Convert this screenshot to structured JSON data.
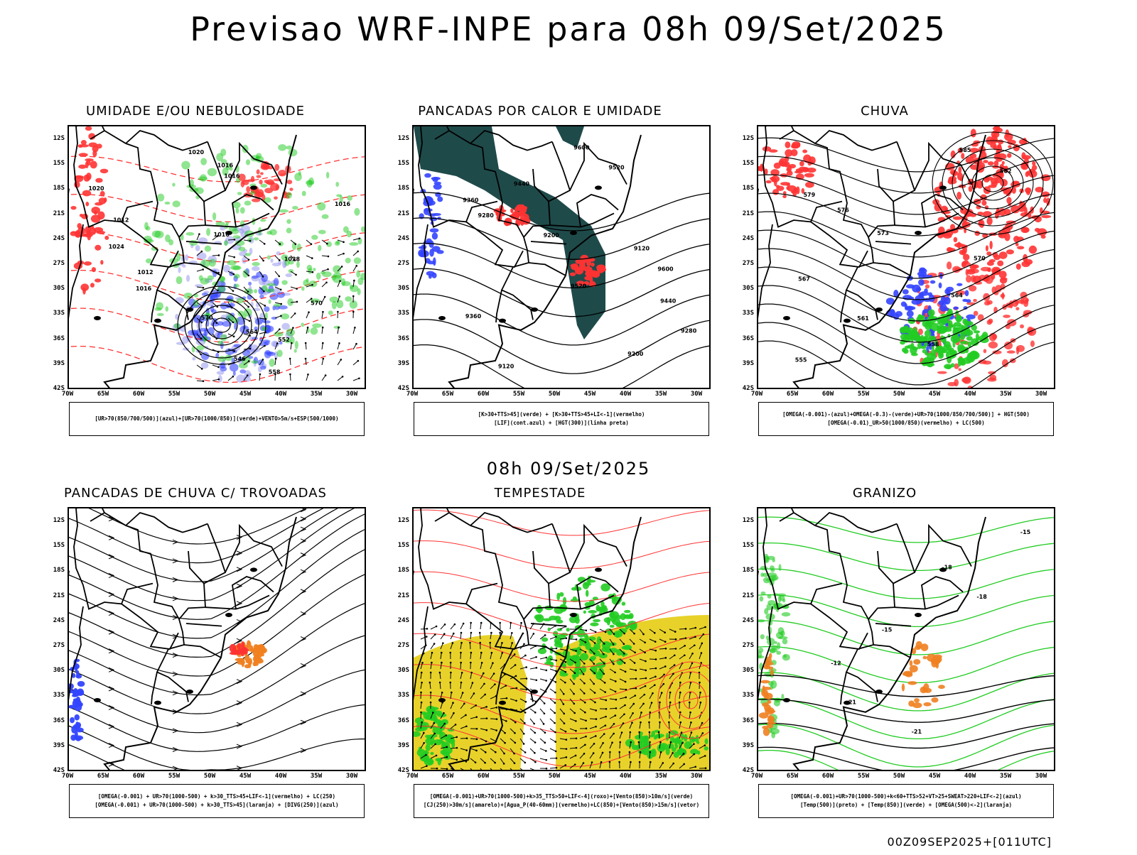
{
  "title": "Previsao WRF-INPE  para 08h 09/Set/2025",
  "mid_date": "08h 09/Set/2025",
  "footer_stamp": "00Z09SEP2025+[011UTC]",
  "lat_labels": [
    "12S",
    "15S",
    "18S",
    "21S",
    "24S",
    "27S",
    "30S",
    "33S",
    "36S",
    "39S",
    "42S"
  ],
  "lon_labels": [
    "70W",
    "65W",
    "60W",
    "55W",
    "50W",
    "45W",
    "40W",
    "35W",
    "30W"
  ],
  "colors": {
    "green": "#22cc22",
    "red": "#ff3333",
    "blue": "#3344ff",
    "dark_teal": "#1f4a4a",
    "yellow": "#e8d22a",
    "orange": "#f08020",
    "lavender": "#9999ee"
  },
  "panels": [
    {
      "title": "UMIDADE E/OU NEBULOSIDADE",
      "legend": [
        "[UR>70(850/700/500)](azul)+[UR>70(1000/850)](verde)+VENTO>5m/s+ESP(500/1000)"
      ],
      "contour_labels": [
        "1020",
        "1016",
        "1016",
        "1020",
        "1016",
        "1012",
        "1016",
        "1024",
        "1028",
        "1012",
        "1016",
        "570",
        "570",
        "564",
        "552",
        "546",
        "558"
      ]
    },
    {
      "title": "PANCADAS POR CALOR E UMIDADE",
      "legend": [
        "[K>30+TTS>45](verde) + [K>30+TTS>45+LI<-1](vermelho)",
        "[LIF](cont.azul) + [HGT(300)](linha preta)"
      ],
      "contour_labels": [
        "9600",
        "9520",
        "9440",
        "9360",
        "9280",
        "9200",
        "9120",
        "9600",
        "9520",
        "9440",
        "9360",
        "9280",
        "9200",
        "9120"
      ]
    },
    {
      "title": "CHUVA",
      "legend": [
        "[OMEGA(-0.001)-(azul)+OMEGA(-0.3)-(verde)+UR>70(1000/850/700/500)] + HGT(500)",
        "[OMEGA(-0.01)_UR>50(1000/850)(vermelho) + LC(500)"
      ],
      "contour_labels": [
        "585",
        "582",
        "579",
        "576",
        "573",
        "570",
        "567",
        "564",
        "561",
        "558",
        "555"
      ]
    },
    {
      "title": "PANCADAS DE CHUVA C/ TROVOADAS",
      "legend": [
        "[OMEGA(-0.001) + UR>70(1000-500) + k>30_TTS>45+LIF<-1](vermelho) + LC(250)",
        "[OMEGA(-0.001) + UR>70(1000-500) + k>30_TTS>45](laranja) + [DIVG(250)](azul)"
      ],
      "contour_labels": []
    },
    {
      "title": "TEMPESTADE",
      "legend": [
        "[OMEGA(-0.001)+UR>70(1000-500)+k>35_TTS>50+LIF<-4](roxo)+[Vento(850)>10m/s](verde)",
        "[CJ(250)>30m/s](amarelo)+[Agua_P(40-60mm)](vermelho)+LC(850)+[Vento(850)>15m/s](vetor)"
      ],
      "contour_labels": []
    },
    {
      "title": "GRANIZO",
      "legend": [
        "[OMEGA(-0.001)+UR>70(1000-500)+k<60+TTS>52+VT>25+SWEAT>220+LIF<-2](azul)",
        "[Temp(500)](preto) + [Temp(850)](verde) + [OMEGA(500)<-2](laranja)"
      ],
      "contour_labels": [
        "-15",
        "-18",
        "-18",
        "-15",
        "-12",
        "-21",
        "-21"
      ]
    }
  ]
}
